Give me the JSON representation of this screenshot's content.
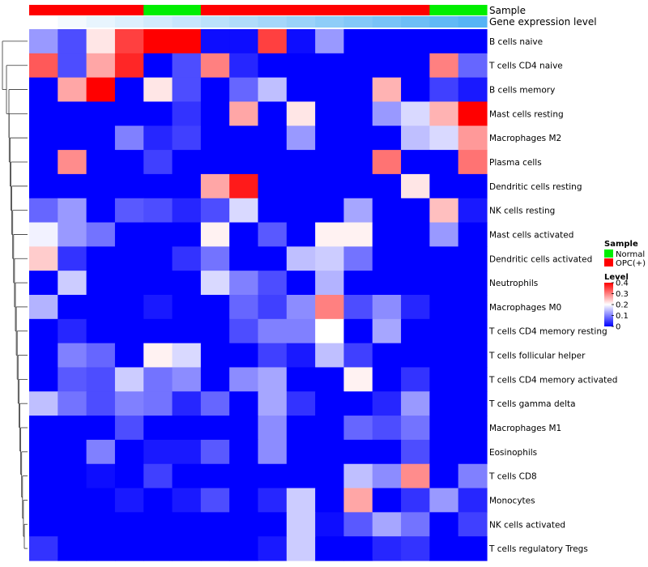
{
  "chart_data": {
    "type": "heatmap",
    "title": "",
    "xlabel": "",
    "ylabel": "",
    "rows": [
      "B cells naive",
      "T cells CD4 naive",
      "B cells memory",
      "Mast cells resting",
      "Macrophages M2",
      "Plasma cells",
      "Dendritic cells resting",
      "NK cells resting",
      "Mast cells activated",
      "Dendritic cells activated",
      "Neutrophils",
      "Macrophages M0",
      "T cells CD4 memory resting",
      "T cells follicular helper",
      "T cells CD4 memory activated",
      "T cells gamma delta",
      "Macrophages M1",
      "Eosinophils",
      "T cells CD8",
      "Monocytes",
      "NK cells activated",
      "T cells regulatory  Tregs"
    ],
    "columns": 16,
    "values": [
      [
        0.12,
        0.06,
        0.22,
        0.35,
        0.4,
        0.4,
        0.01,
        0.01,
        0.35,
        0.01,
        0.12,
        0.0,
        0.0,
        0.0,
        0.0,
        0.0
      ],
      [
        0.33,
        0.06,
        0.27,
        0.37,
        0.0,
        0.06,
        0.3,
        0.03,
        0.0,
        0.0,
        0.0,
        0.0,
        0.0,
        0.0,
        0.3,
        0.08
      ],
      [
        0.0,
        0.27,
        0.4,
        0.0,
        0.22,
        0.06,
        0.0,
        0.08,
        0.15,
        0.0,
        0.0,
        0.0,
        0.26,
        0.0,
        0.05,
        0.02
      ],
      [
        0.0,
        0.0,
        0.0,
        0.0,
        0.0,
        0.04,
        0.0,
        0.27,
        0.0,
        0.22,
        0.0,
        0.0,
        0.12,
        0.17,
        0.26,
        0.4
      ],
      [
        0.0,
        0.0,
        0.0,
        0.1,
        0.03,
        0.05,
        0.0,
        0.0,
        0.0,
        0.12,
        0.0,
        0.0,
        0.0,
        0.15,
        0.17,
        0.28
      ],
      [
        0.0,
        0.29,
        0.0,
        0.0,
        0.05,
        0.0,
        0.0,
        0.0,
        0.0,
        0.0,
        0.0,
        0.0,
        0.31,
        0.0,
        0.0,
        0.31
      ],
      [
        0.0,
        0.0,
        0.0,
        0.0,
        0.0,
        0.0,
        0.27,
        0.38,
        0.0,
        0.0,
        0.0,
        0.0,
        0.0,
        0.22,
        0.0,
        0.0
      ],
      [
        0.08,
        0.12,
        0.0,
        0.07,
        0.06,
        0.03,
        0.06,
        0.17,
        0.0,
        0.0,
        0.0,
        0.13,
        0.0,
        0.0,
        0.25,
        0.02
      ],
      [
        0.19,
        0.12,
        0.09,
        0.0,
        0.0,
        0.0,
        0.21,
        0.0,
        0.07,
        0.0,
        0.21,
        0.21,
        0.0,
        0.0,
        0.12,
        0.0
      ],
      [
        0.24,
        0.04,
        0.0,
        0.0,
        0.0,
        0.04,
        0.09,
        0.0,
        0.0,
        0.15,
        0.16,
        0.09,
        0.0,
        0.0,
        0.0,
        0.0
      ],
      [
        0.0,
        0.16,
        0.0,
        0.0,
        0.0,
        0.0,
        0.17,
        0.1,
        0.06,
        0.0,
        0.14,
        0.0,
        0.0,
        0.0,
        0.0,
        0.0
      ],
      [
        0.14,
        0.0,
        0.0,
        0.0,
        0.02,
        0.0,
        0.0,
        0.08,
        0.05,
        0.11,
        0.3,
        0.06,
        0.11,
        0.03,
        0.0,
        0.0
      ],
      [
        0.0,
        0.03,
        0.0,
        0.0,
        0.0,
        0.0,
        0.0,
        0.06,
        0.1,
        0.1,
        0.2,
        0.0,
        0.13,
        0.0,
        0.0,
        0.0
      ],
      [
        0.0,
        0.1,
        0.08,
        0.0,
        0.21,
        0.17,
        0.0,
        0.0,
        0.05,
        0.02,
        0.15,
        0.05,
        0.0,
        0.0,
        0.0,
        0.0
      ],
      [
        0.0,
        0.07,
        0.06,
        0.16,
        0.09,
        0.11,
        0.0,
        0.11,
        0.13,
        0.0,
        0.0,
        0.21,
        0.0,
        0.04,
        0.0,
        0.0
      ],
      [
        0.15,
        0.09,
        0.06,
        0.1,
        0.09,
        0.03,
        0.08,
        0.0,
        0.13,
        0.04,
        0.0,
        0.0,
        0.03,
        0.12,
        0.0,
        0.0
      ],
      [
        0.0,
        0.0,
        0.0,
        0.06,
        0.0,
        0.0,
        0.0,
        0.0,
        0.11,
        0.0,
        0.0,
        0.08,
        0.06,
        0.09,
        0.0,
        0.0
      ],
      [
        0.0,
        0.0,
        0.1,
        0.0,
        0.02,
        0.02,
        0.07,
        0.0,
        0.11,
        0.0,
        0.0,
        0.0,
        0.0,
        0.06,
        0.0,
        0.0
      ],
      [
        0.0,
        0.0,
        0.01,
        0.0,
        0.05,
        0.0,
        0.0,
        0.0,
        0.0,
        0.0,
        0.0,
        0.15,
        0.11,
        0.29,
        0.0,
        0.1
      ],
      [
        0.0,
        0.0,
        0.0,
        0.02,
        0.0,
        0.02,
        0.06,
        0.0,
        0.03,
        0.16,
        0.0,
        0.27,
        0.0,
        0.04,
        0.12,
        0.03
      ],
      [
        0.0,
        0.0,
        0.0,
        0.0,
        0.0,
        0.0,
        0.0,
        0.0,
        0.0,
        0.16,
        0.01,
        0.07,
        0.13,
        0.09,
        0.0,
        0.05
      ],
      [
        0.04,
        0.0,
        0.0,
        0.0,
        0.0,
        0.0,
        0.0,
        0.0,
        0.02,
        0.16,
        0.0,
        0.0,
        0.03,
        0.04,
        0.0,
        0.0
      ]
    ],
    "sample_annotation": [
      "OPC(+)",
      "OPC(+)",
      "OPC(+)",
      "OPC(+)",
      "Normal",
      "Normal",
      "OPC(+)",
      "OPC(+)",
      "OPC(+)",
      "OPC(+)",
      "OPC(+)",
      "OPC(+)",
      "OPC(+)",
      "OPC(+)",
      "Normal",
      "Normal"
    ],
    "gene_expression_level": [
      0.0,
      0.02,
      0.04,
      0.06,
      0.08,
      0.1,
      0.12,
      0.14,
      0.16,
      0.18,
      0.2,
      0.22,
      0.24,
      0.26,
      0.28,
      0.3
    ],
    "annotation_labels": {
      "sample": "Sample",
      "gene_expression": "Gene expression level"
    },
    "legend": {
      "placement": "right",
      "sample_title": "Sample",
      "sample_entries": [
        {
          "label": "Normal",
          "color": "#00ee00"
        },
        {
          "label": "OPC(+)",
          "color": "#ff0000"
        }
      ],
      "level_title": "Level",
      "level_ticks": [
        "0.4",
        "0.3",
        "0.2",
        "0.1",
        "0"
      ],
      "level_tick_values": [
        0.4,
        0.3,
        0.2,
        0.1,
        0.0
      ]
    },
    "color_scale": {
      "min": 0,
      "mid": 0.2,
      "max": 0.4,
      "low_color": "#0000ff",
      "mid_color": "#ffffff",
      "high_color": "#ff0000"
    },
    "expression_scale_colors": [
      "#ffffff",
      "#56b4f5"
    ],
    "dendrogram": "row-clustering"
  }
}
